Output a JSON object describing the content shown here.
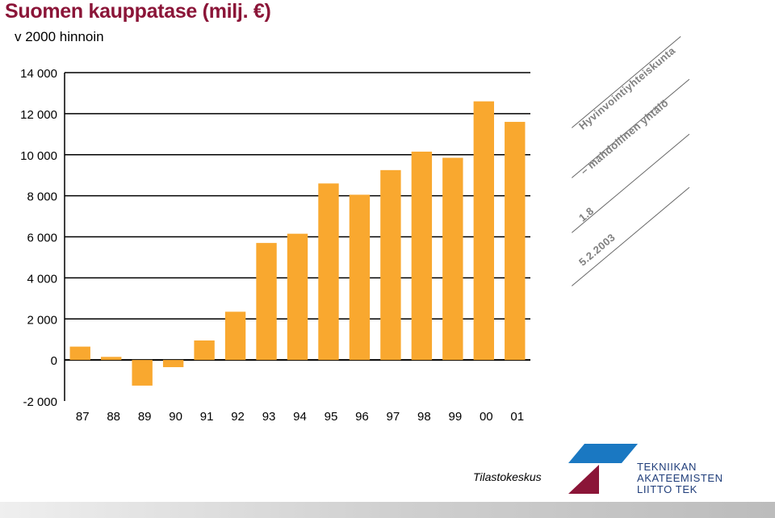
{
  "chart_data": {
    "type": "bar",
    "title": "Suomen kauppatase (milj. €)",
    "subtitle": "v 2000 hinnoin",
    "categories": [
      "87",
      "88",
      "89",
      "90",
      "91",
      "92",
      "93",
      "94",
      "95",
      "96",
      "97",
      "98",
      "99",
      "00",
      "01"
    ],
    "values": [
      650,
      150,
      -1250,
      -350,
      950,
      2350,
      5700,
      6150,
      8600,
      8050,
      9250,
      10150,
      9850,
      12600,
      11600
    ],
    "ylim": [
      -2000,
      14000
    ],
    "yticks": [
      -2000,
      0,
      2000,
      4000,
      6000,
      8000,
      10000,
      12000,
      14000
    ],
    "ytick_labels": [
      "-2 000",
      "0",
      "2 000",
      "4 000",
      "6 000",
      "8 000",
      "10 000",
      "12 000",
      "14 000"
    ],
    "xlabel": "",
    "ylabel": "",
    "grid": true,
    "bar_color": "#f9a82f",
    "title_color": "#8b1538"
  },
  "side_note": {
    "line1": "Hyvinvointiyhteiskunta",
    "line2": "– mahdollinen yhtälö",
    "line3": "1.8",
    "line4": "5.2.2003"
  },
  "source": "Tilastokeskus",
  "organization": {
    "line1": "TEKNIIKAN",
    "line2": "AKATEEMISTEN",
    "line3": "LIITTO TEK"
  },
  "colors": {
    "logo_blue": "#1a78c2",
    "logo_red": "#8b1538",
    "org_text": "#1f3d7a"
  }
}
